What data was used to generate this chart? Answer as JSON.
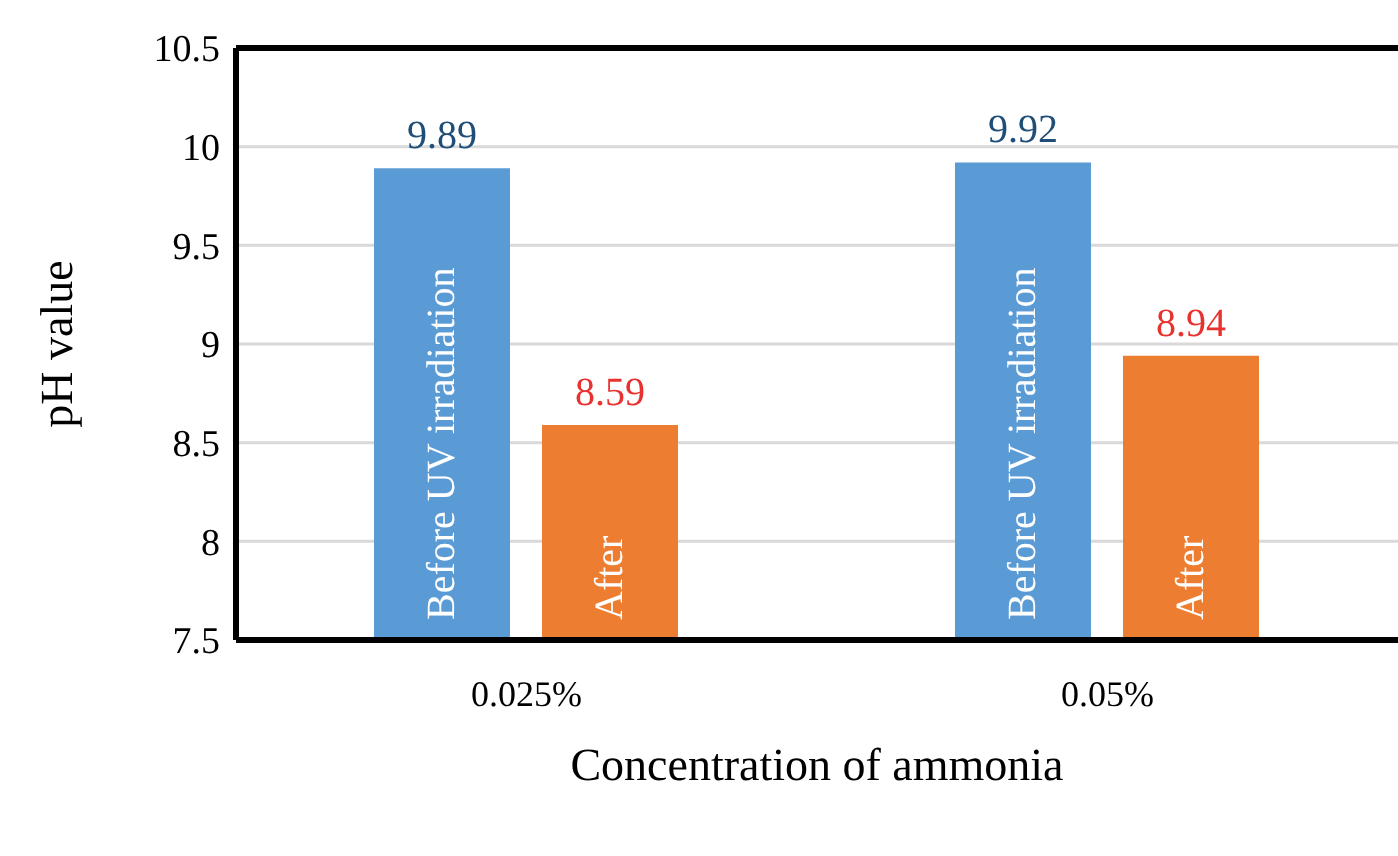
{
  "chart_data": {
    "type": "bar",
    "xlabel": "Concentration of ammonia",
    "ylabel": "pH value",
    "categories": [
      "0.025%",
      "0.05%"
    ],
    "series": [
      {
        "name": "Before UV irradiation",
        "color": "#5b9bd5",
        "values": [
          9.89,
          9.92
        ]
      },
      {
        "name": "After",
        "color": "#ed7d31",
        "values": [
          8.59,
          8.94
        ]
      }
    ],
    "ylim": [
      7.5,
      10.5
    ],
    "yticks": [
      7.5,
      8,
      8.5,
      9,
      9.5,
      10,
      10.5
    ],
    "grid": "y",
    "data_labels": true,
    "legend": false
  }
}
